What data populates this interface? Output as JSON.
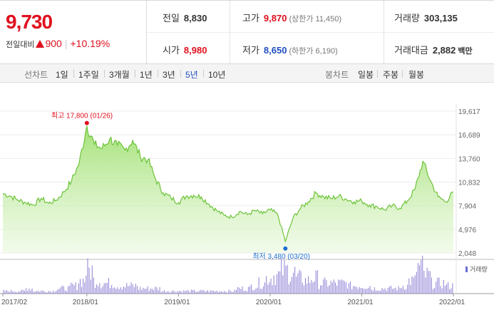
{
  "quote": {
    "price": "9,730",
    "change_label": "전일대비",
    "change_value": "900",
    "change_pct": "+10.19%",
    "cells": [
      {
        "label": "전일",
        "value": "8,830",
        "tone": "",
        "sub": ""
      },
      {
        "label": "고가",
        "value": "9,870",
        "tone": "up",
        "sub": "(상한가 11,450)"
      },
      {
        "label": "거래량",
        "value": "303,135",
        "tone": "",
        "sub": ""
      },
      {
        "label": "시가",
        "value": "8,980",
        "tone": "up",
        "sub": ""
      },
      {
        "label": "저가",
        "value": "8,650",
        "tone": "down",
        "sub": "(하한가 6,190)"
      },
      {
        "label": "거래대금",
        "value": "2,882",
        "tone": "",
        "sub": "백만"
      }
    ],
    "colors": {
      "up": "#e0101e",
      "down": "#1f4fbf"
    }
  },
  "toolbar": {
    "line_label": "선차트",
    "line_options": [
      "1일",
      "1주일",
      "3개월",
      "1년",
      "3년",
      "5년",
      "10년"
    ],
    "line_active": "5년",
    "candle_label": "봉차트",
    "candle_options": [
      "일봉",
      "주봉",
      "월봉"
    ]
  },
  "chart_data": {
    "type": "area",
    "x_ticks": [
      "2017/02",
      "2018/01",
      "2019/01",
      "2020/01",
      "2021/01",
      "2022/01"
    ],
    "y_ticks": [
      19617,
      16689,
      13760,
      10832,
      7904,
      4976,
      2048
    ],
    "y_tick_labels": [
      "19,617",
      "16,689",
      "13,760",
      "10,832",
      "7,904",
      "4,976",
      "2,048"
    ],
    "ylim": [
      2048,
      19617
    ],
    "high_label": "최고 17,800 (01/26)",
    "low_label": "최저 3,480 (03/20)",
    "volume_legend": "거래량",
    "series": [
      {
        "x": [
          "2017/02",
          "2017/03",
          "2017/04",
          "2017/05",
          "2017/06",
          "2017/07",
          "2017/08",
          "2017/09",
          "2017/10",
          "2017/11",
          "2017/12",
          "2018/01",
          "2018/02",
          "2018/03",
          "2018/04",
          "2018/05",
          "2018/06",
          "2018/07",
          "2018/08",
          "2018/09",
          "2018/10",
          "2018/11",
          "2018/12",
          "2019/01",
          "2019/02",
          "2019/03",
          "2019/04",
          "2019/05",
          "2019/06",
          "2019/07",
          "2019/08",
          "2019/09",
          "2019/10",
          "2019/11",
          "2019/12",
          "2020/01",
          "2020/02",
          "2020/03",
          "2020/04",
          "2020/05",
          "2020/06",
          "2020/07",
          "2020/08",
          "2020/09",
          "2020/10",
          "2020/11",
          "2020/12",
          "2021/01",
          "2021/02",
          "2021/03",
          "2021/04",
          "2021/05",
          "2021/06",
          "2021/07",
          "2021/08",
          "2021/09",
          "2021/10",
          "2021/11",
          "2021/12",
          "2022/01"
        ],
        "values": [
          9400,
          9100,
          8600,
          8300,
          8000,
          8800,
          8200,
          8600,
          9600,
          11000,
          13200,
          17800,
          15500,
          15000,
          16200,
          15400,
          14800,
          16000,
          14000,
          13600,
          11200,
          9500,
          8900,
          8300,
          9100,
          9200,
          9000,
          8100,
          7300,
          6700,
          6500,
          7200,
          6800,
          7300,
          6900,
          7400,
          6800,
          3480,
          6400,
          7600,
          8400,
          9500,
          9000,
          8800,
          9100,
          8700,
          8400,
          8500,
          8000,
          7800,
          7400,
          7900,
          7600,
          8500,
          10000,
          13400,
          11000,
          9000,
          8400,
          9600
        ],
        "volume": [
          1,
          1,
          1,
          2,
          1,
          1,
          1,
          2,
          2,
          3,
          5,
          9,
          5,
          4,
          4,
          3,
          3,
          3,
          2,
          2,
          2,
          1,
          1,
          1,
          1,
          1,
          1,
          1,
          1,
          1,
          1,
          2,
          2,
          3,
          4,
          6,
          7,
          9,
          8,
          6,
          5,
          6,
          4,
          4,
          4,
          4,
          3,
          3,
          3,
          2,
          2,
          2,
          2,
          3,
          5,
          10,
          7,
          4,
          4,
          3
        ]
      }
    ]
  }
}
